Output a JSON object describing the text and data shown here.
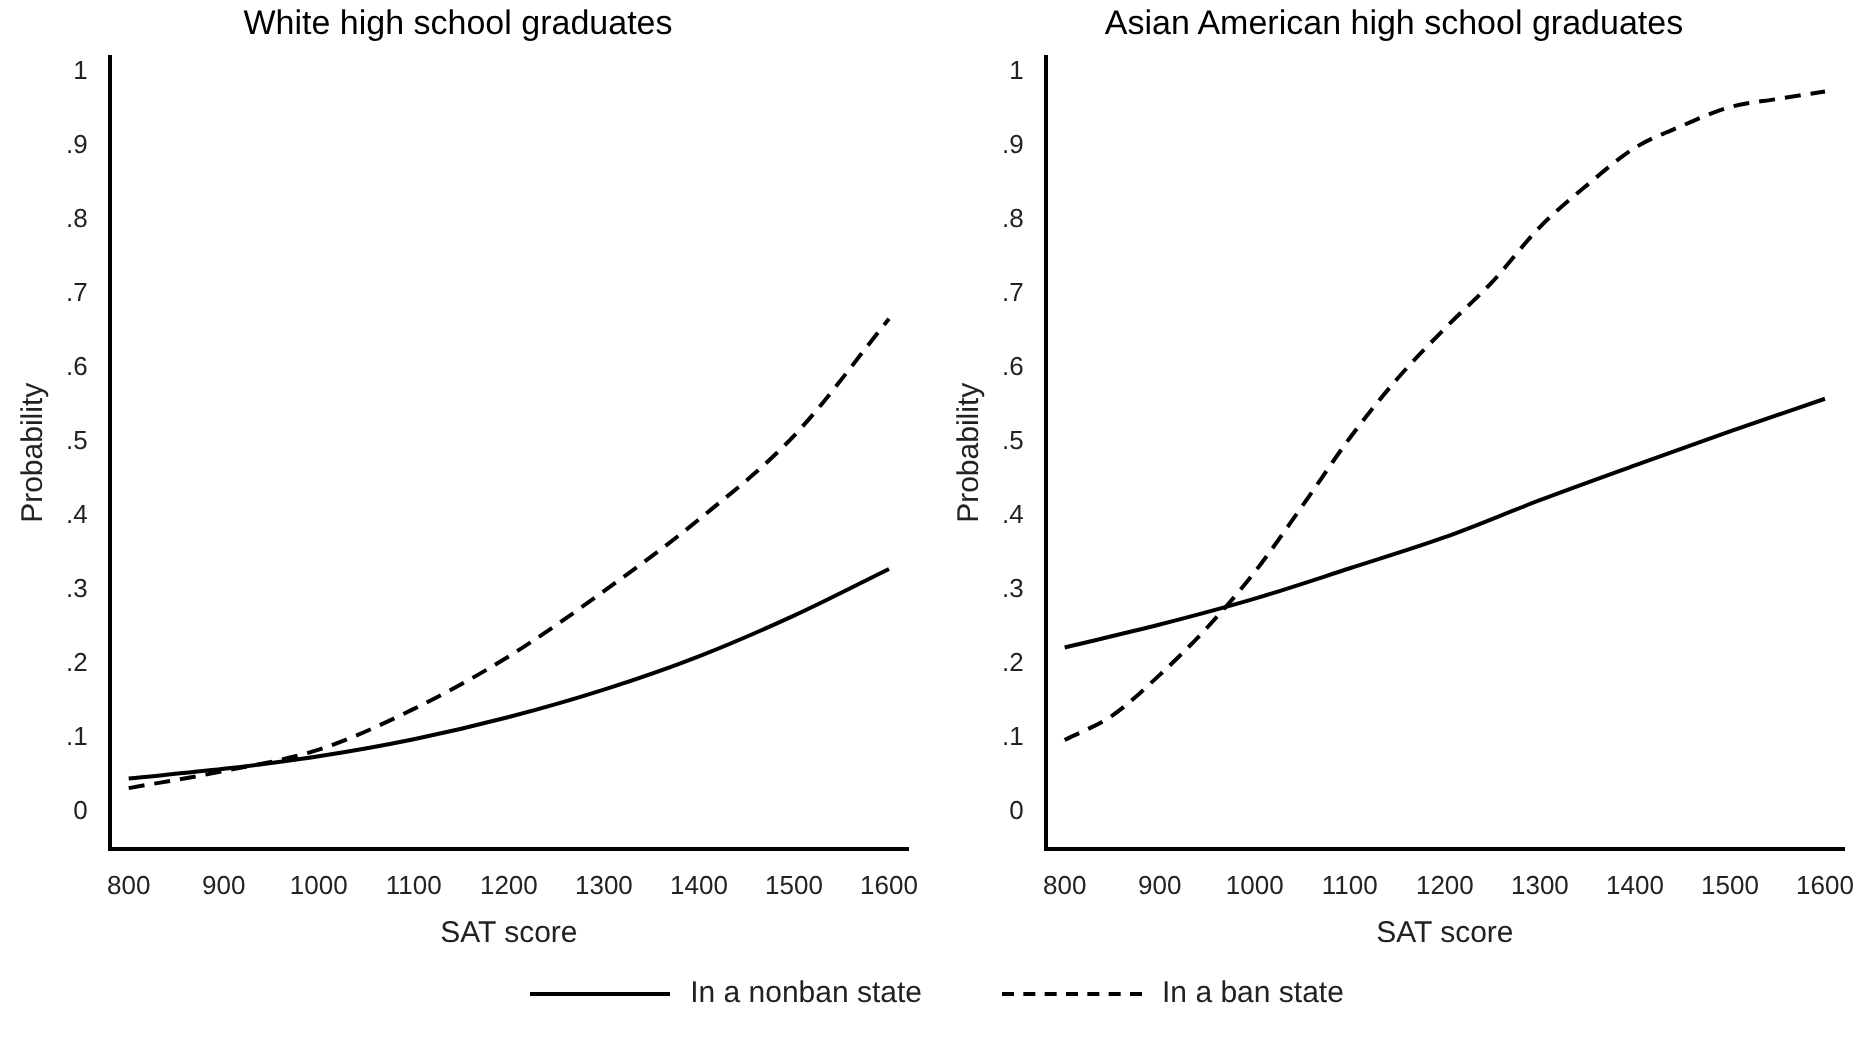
{
  "chart_data": [
    {
      "type": "line",
      "title": "White high school graduates",
      "xlabel": "SAT score",
      "ylabel": "Probability",
      "xlim": [
        780,
        1620
      ],
      "ylim": [
        -0.05,
        1.02
      ],
      "xticks": [
        800,
        900,
        1000,
        1100,
        1200,
        1300,
        1400,
        1500,
        1600
      ],
      "yticks": [
        {
          "value": 0,
          "label": "0"
        },
        {
          "value": 0.1,
          "label": ".1"
        },
        {
          "value": 0.2,
          "label": ".2"
        },
        {
          "value": 0.3,
          "label": ".3"
        },
        {
          "value": 0.4,
          "label": ".4"
        },
        {
          "value": 0.5,
          "label": ".5"
        },
        {
          "value": 0.6,
          "label": ".6"
        },
        {
          "value": 0.7,
          "label": ".7"
        },
        {
          "value": 0.8,
          "label": ".8"
        },
        {
          "value": 0.9,
          "label": ".9"
        },
        {
          "value": 1,
          "label": "1"
        }
      ],
      "grid": false,
      "legend": "bottom",
      "marker": "none",
      "series": [
        {
          "name": "In a nonban state",
          "color": "#000000",
          "line_style": "solid",
          "x": [
            800,
            900,
            1000,
            1100,
            1200,
            1300,
            1400,
            1500,
            1600
          ],
          "values": [
            0.045,
            0.058,
            0.075,
            0.098,
            0.128,
            0.165,
            0.21,
            0.265,
            0.328
          ]
        },
        {
          "name": "In a ban state",
          "color": "#000000",
          "line_style": "dashed",
          "x": [
            800,
            900,
            1000,
            1100,
            1200,
            1300,
            1400,
            1500,
            1600
          ],
          "values": [
            0.032,
            0.055,
            0.084,
            0.139,
            0.21,
            0.298,
            0.395,
            0.508,
            0.666
          ]
        }
      ]
    },
    {
      "type": "line",
      "title": "Asian American high school graduates",
      "xlabel": "SAT score",
      "ylabel": "Probability",
      "xlim": [
        780,
        1620
      ],
      "ylim": [
        -0.05,
        1.02
      ],
      "xticks": [
        800,
        900,
        1000,
        1100,
        1200,
        1300,
        1400,
        1500,
        1600
      ],
      "yticks": [
        {
          "value": 0,
          "label": "0"
        },
        {
          "value": 0.1,
          "label": ".1"
        },
        {
          "value": 0.2,
          "label": ".2"
        },
        {
          "value": 0.3,
          "label": ".3"
        },
        {
          "value": 0.4,
          "label": ".4"
        },
        {
          "value": 0.5,
          "label": ".5"
        },
        {
          "value": 0.6,
          "label": ".6"
        },
        {
          "value": 0.7,
          "label": ".7"
        },
        {
          "value": 0.8,
          "label": ".8"
        },
        {
          "value": 0.9,
          "label": ".9"
        },
        {
          "value": 1,
          "label": "1"
        }
      ],
      "grid": false,
      "marker": "none",
      "series": [
        {
          "color": "#000000",
          "line_style": "solid",
          "x": [
            800,
            900,
            1000,
            1100,
            1200,
            1300,
            1400,
            1500,
            1600
          ],
          "values": [
            0.222,
            0.253,
            0.288,
            0.329,
            0.371,
            0.421,
            0.468,
            0.514,
            0.558
          ]
        },
        {
          "color": "#000000",
          "line_style": "dashed",
          "x": [
            800,
            850,
            900,
            950,
            1000,
            1050,
            1100,
            1150,
            1200,
            1250,
            1300,
            1350,
            1400,
            1450,
            1500,
            1550,
            1600
          ],
          "values": [
            0.097,
            0.13,
            0.185,
            0.249,
            0.324,
            0.413,
            0.505,
            0.585,
            0.653,
            0.716,
            0.79,
            0.847,
            0.897,
            0.927,
            0.952,
            0.963,
            0.973
          ]
        }
      ]
    }
  ]
}
